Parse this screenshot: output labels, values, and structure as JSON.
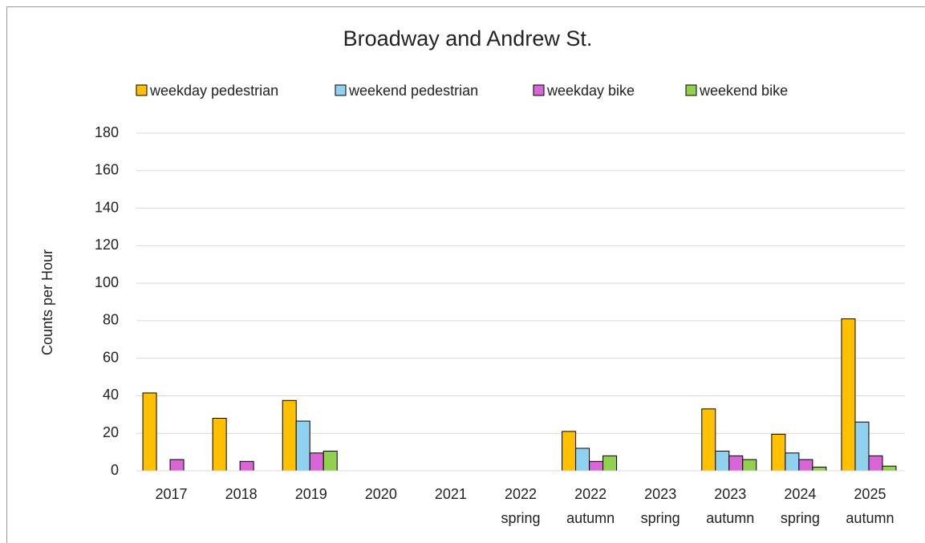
{
  "chart_data": {
    "type": "bar",
    "title": "Broadway and Andrew St.",
    "y_label": "Counts per Hour",
    "categories": [
      "2017",
      "2018",
      "2019",
      "2020",
      "2021",
      "2022 spring",
      "2022 autumn",
      "2023 spring",
      "2023 autumn",
      "2024 spring",
      "2025 autumn"
    ],
    "series": [
      {
        "name": "weekday pedestrian",
        "color": "#ffc000",
        "values": [
          41.5,
          28,
          37.5,
          null,
          null,
          null,
          21,
          null,
          33,
          19.5,
          81
        ]
      },
      {
        "name": "weekend pedestrian",
        "color": "#8fd1ef",
        "values": [
          null,
          null,
          26.5,
          null,
          null,
          null,
          12,
          null,
          10.5,
          9.5,
          26
        ]
      },
      {
        "name": "weekday bike",
        "color": "#d966d6",
        "values": [
          6,
          5,
          9.5,
          null,
          null,
          null,
          5,
          null,
          8,
          6,
          8
        ]
      },
      {
        "name": "weekend bike",
        "color": "#92d050",
        "values": [
          null,
          null,
          10.5,
          null,
          null,
          null,
          8,
          null,
          6,
          2,
          2.5
        ]
      }
    ],
    "ylim": [
      0,
      180
    ],
    "yticks": [
      0,
      20,
      40,
      60,
      80,
      100,
      120,
      140,
      160,
      180
    ],
    "grid": true,
    "legend": "top"
  }
}
